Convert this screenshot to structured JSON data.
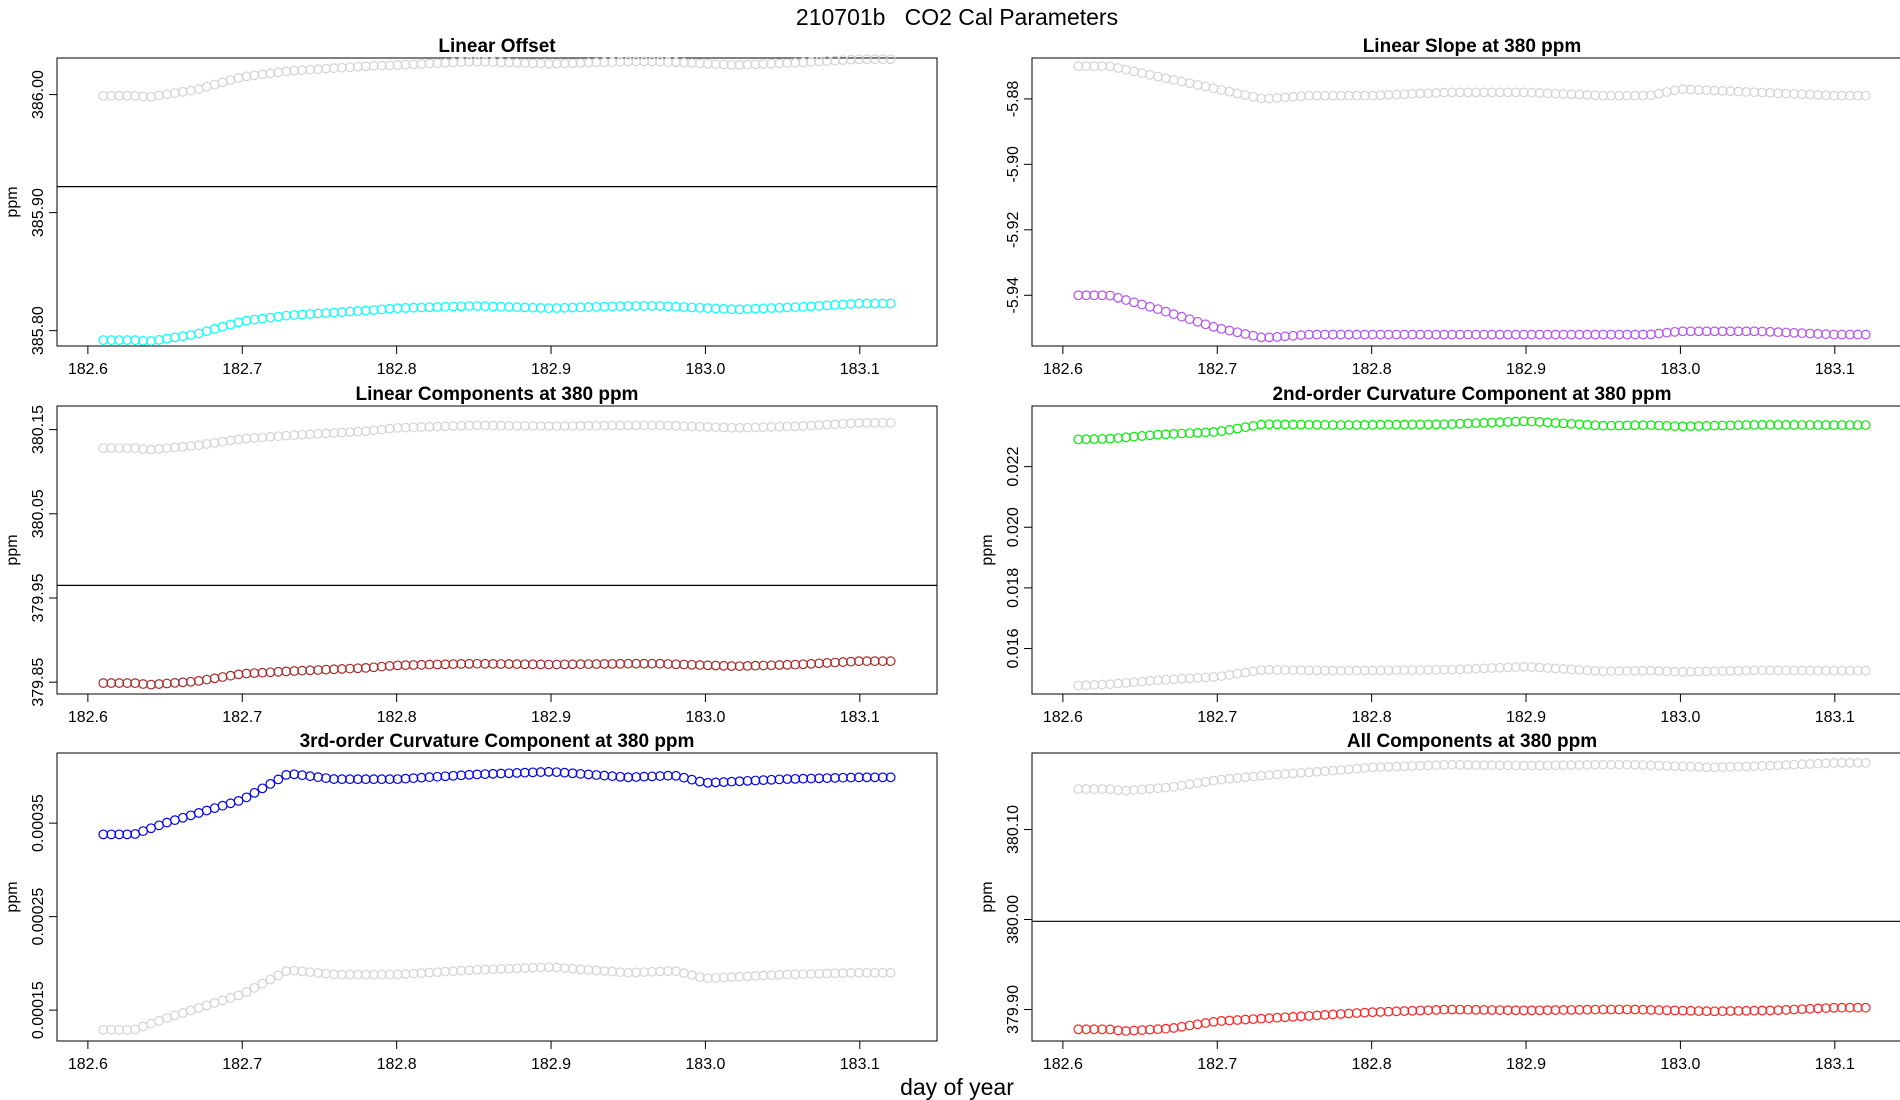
{
  "figure": {
    "title": "210701b   CO2 Cal Parameters",
    "xlabel": "day of year"
  },
  "colors": {
    "reference": "#d3d3d3",
    "axis": "#000000"
  },
  "chart_data": [
    {
      "type": "scatter",
      "title": "Linear Offset",
      "ylabel": "ppm",
      "xticks": [
        "182.6",
        "182.7",
        "182.8",
        "182.9",
        "183.0",
        "183.1"
      ],
      "yticks": [
        "385.80",
        "385.90",
        "386.00"
      ],
      "xlim": [
        182.58,
        183.15
      ],
      "ylim": [
        385.787,
        386.031
      ],
      "hline": 385.922,
      "series": [
        {
          "color": "#00ffff",
          "keypoints": [
            [
              182.61,
              385.792
            ],
            [
              182.63,
              385.792
            ],
            [
              182.64,
              385.791
            ],
            [
              182.67,
              385.797
            ],
            [
              182.7,
              385.808
            ],
            [
              182.73,
              385.813
            ],
            [
              182.78,
              385.817
            ],
            [
              182.8,
              385.819
            ],
            [
              182.85,
              385.821
            ],
            [
              182.9,
              385.819
            ],
            [
              182.95,
              385.821
            ],
            [
              182.97,
              385.821
            ],
            [
              183.02,
              385.818
            ],
            [
              183.06,
              385.82
            ],
            [
              183.1,
              385.823
            ],
            [
              183.12,
              385.823
            ]
          ]
        },
        {
          "color": "#d3d3d3",
          "keypoints": [
            [
              182.61,
              385.999
            ],
            [
              182.63,
              385.999
            ],
            [
              182.64,
              385.998
            ],
            [
              182.67,
              386.004
            ],
            [
              182.7,
              386.015
            ],
            [
              182.73,
              386.02
            ],
            [
              182.78,
              386.024
            ],
            [
              182.8,
              386.025
            ],
            [
              182.85,
              386.028
            ],
            [
              182.9,
              386.026
            ],
            [
              182.95,
              386.028
            ],
            [
              182.97,
              386.028
            ],
            [
              183.02,
              386.025
            ],
            [
              183.06,
              386.027
            ],
            [
              183.1,
              386.03
            ],
            [
              183.12,
              386.03
            ]
          ]
        }
      ]
    },
    {
      "type": "scatter",
      "title": "Linear Slope at 380 ppm",
      "ylabel": "",
      "xticks": [
        "182.6",
        "182.7",
        "182.8",
        "182.9",
        "183.0",
        "183.1"
      ],
      "yticks": [
        "-5.94",
        "-5.92",
        "-5.90",
        "-5.88"
      ],
      "xlim": [
        182.58,
        183.15
      ],
      "ylim": [
        -5.9555,
        -5.8675
      ],
      "hline": null,
      "series": [
        {
          "color": "#b452f0",
          "keypoints": [
            [
              182.61,
              -5.94
            ],
            [
              182.63,
              -5.94
            ],
            [
              182.66,
              -5.944
            ],
            [
              182.7,
              -5.95
            ],
            [
              182.73,
              -5.953
            ],
            [
              182.76,
              -5.952
            ],
            [
              182.8,
              -5.952
            ],
            [
              182.85,
              -5.952
            ],
            [
              182.9,
              -5.952
            ],
            [
              182.95,
              -5.952
            ],
            [
              182.98,
              -5.952
            ],
            [
              183.0,
              -5.951
            ],
            [
              183.05,
              -5.951
            ],
            [
              183.1,
              -5.952
            ],
            [
              183.12,
              -5.952
            ]
          ]
        },
        {
          "color": "#d3d3d3",
          "keypoints": [
            [
              182.61,
              -5.87
            ],
            [
              182.63,
              -5.87
            ],
            [
              182.66,
              -5.873
            ],
            [
              182.7,
              -5.877
            ],
            [
              182.73,
              -5.88
            ],
            [
              182.76,
              -5.879
            ],
            [
              182.8,
              -5.879
            ],
            [
              182.85,
              -5.878
            ],
            [
              182.9,
              -5.878
            ],
            [
              182.95,
              -5.879
            ],
            [
              182.98,
              -5.879
            ],
            [
              183.0,
              -5.877
            ],
            [
              183.05,
              -5.878
            ],
            [
              183.1,
              -5.879
            ],
            [
              183.12,
              -5.879
            ]
          ]
        }
      ]
    },
    {
      "type": "scatter",
      "title": "Linear Components at 380 ppm",
      "ylabel": "ppm",
      "xticks": [
        "182.6",
        "182.7",
        "182.8",
        "182.9",
        "183.0",
        "183.1"
      ],
      "yticks": [
        "379.85",
        "379.95",
        "380.05",
        "380.15"
      ],
      "xlim": [
        182.58,
        183.15
      ],
      "ylim": [
        379.836,
        380.178
      ],
      "hline": 379.965,
      "series": [
        {
          "color": "#a52a2a",
          "keypoints": [
            [
              182.61,
              379.849
            ],
            [
              182.63,
              379.849
            ],
            [
              182.64,
              379.847
            ],
            [
              182.67,
              379.851
            ],
            [
              182.7,
              379.86
            ],
            [
              182.73,
              379.863
            ],
            [
              182.78,
              379.867
            ],
            [
              182.8,
              379.87
            ],
            [
              182.85,
              379.872
            ],
            [
              182.9,
              379.871
            ],
            [
              182.95,
              379.872
            ],
            [
              182.97,
              379.872
            ],
            [
              183.02,
              379.869
            ],
            [
              183.06,
              379.871
            ],
            [
              183.1,
              379.875
            ],
            [
              183.12,
              379.875
            ]
          ]
        },
        {
          "color": "#d3d3d3",
          "keypoints": [
            [
              182.61,
              380.128
            ],
            [
              182.63,
              380.128
            ],
            [
              182.64,
              380.126
            ],
            [
              182.67,
              380.131
            ],
            [
              182.7,
              380.139
            ],
            [
              182.73,
              380.143
            ],
            [
              182.78,
              380.148
            ],
            [
              182.8,
              380.152
            ],
            [
              182.85,
              380.155
            ],
            [
              182.9,
              380.154
            ],
            [
              182.95,
              380.155
            ],
            [
              182.97,
              380.155
            ],
            [
              183.02,
              380.152
            ],
            [
              183.06,
              380.154
            ],
            [
              183.1,
              380.158
            ],
            [
              183.12,
              380.158
            ]
          ]
        }
      ]
    },
    {
      "type": "scatter",
      "title": "2nd-order Curvature Component at 380 ppm",
      "ylabel": "ppm",
      "xticks": [
        "182.6",
        "182.7",
        "182.8",
        "182.9",
        "183.0",
        "183.1"
      ],
      "yticks": [
        "0.016",
        "0.018",
        "0.020",
        "0.022"
      ],
      "xlim": [
        182.58,
        183.15
      ],
      "ylim": [
        0.0145,
        0.024
      ],
      "hline": null,
      "series": [
        {
          "color": "#00ee00",
          "keypoints": [
            [
              182.61,
              0.0229
            ],
            [
              182.63,
              0.02292
            ],
            [
              182.66,
              0.02305
            ],
            [
              182.7,
              0.02315
            ],
            [
              182.73,
              0.0234
            ],
            [
              182.78,
              0.02337
            ],
            [
              182.85,
              0.0234
            ],
            [
              182.9,
              0.0235
            ],
            [
              182.95,
              0.02335
            ],
            [
              182.98,
              0.02337
            ],
            [
              183.0,
              0.02333
            ],
            [
              183.05,
              0.02338
            ],
            [
              183.1,
              0.02337
            ],
            [
              183.12,
              0.02337
            ]
          ]
        },
        {
          "color": "#d3d3d3",
          "keypoints": [
            [
              182.61,
              0.01478
            ],
            [
              182.63,
              0.01482
            ],
            [
              182.66,
              0.01495
            ],
            [
              182.7,
              0.01507
            ],
            [
              182.73,
              0.0153
            ],
            [
              182.78,
              0.01527
            ],
            [
              182.85,
              0.0153
            ],
            [
              182.9,
              0.0154
            ],
            [
              182.95,
              0.01525
            ],
            [
              182.98,
              0.01527
            ],
            [
              183.0,
              0.01523
            ],
            [
              183.05,
              0.01528
            ],
            [
              183.1,
              0.01527
            ],
            [
              183.12,
              0.01527
            ]
          ]
        }
      ]
    },
    {
      "type": "scatter",
      "title": "3rd-order Curvature Component at 380 ppm",
      "ylabel": "ppm",
      "xticks": [
        "182.6",
        "182.7",
        "182.8",
        "182.9",
        "183.0",
        "183.1"
      ],
      "yticks": [
        "0.00015",
        "0.00025",
        "0.00035"
      ],
      "xlim": [
        182.58,
        183.15
      ],
      "ylim": [
        0.000117,
        0.000425
      ],
      "hline": null,
      "series": [
        {
          "color": "#0000ee",
          "keypoints": [
            [
              182.61,
              0.000338
            ],
            [
              182.63,
              0.000338
            ],
            [
              182.65,
              0.00035
            ],
            [
              182.7,
              0.000375
            ],
            [
              182.73,
              0.000403
            ],
            [
              182.76,
              0.000397
            ],
            [
              182.8,
              0.000397
            ],
            [
              182.85,
              0.000402
            ],
            [
              182.9,
              0.000405
            ],
            [
              182.95,
              0.000399
            ],
            [
              182.98,
              0.000401
            ],
            [
              183.0,
              0.000393
            ],
            [
              183.05,
              0.000397
            ],
            [
              183.1,
              0.000399
            ],
            [
              183.12,
              0.000399
            ]
          ]
        },
        {
          "color": "#d3d3d3",
          "keypoints": [
            [
              182.61,
              0.000129
            ],
            [
              182.63,
              0.000129
            ],
            [
              182.65,
              0.000141
            ],
            [
              182.7,
              0.000167
            ],
            [
              182.73,
              0.000193
            ],
            [
              182.76,
              0.000188
            ],
            [
              182.8,
              0.000188
            ],
            [
              182.85,
              0.000193
            ],
            [
              182.9,
              0.000196
            ],
            [
              182.95,
              0.00019
            ],
            [
              182.98,
              0.000192
            ],
            [
              183.0,
              0.000184
            ],
            [
              183.05,
              0.000188
            ],
            [
              183.1,
              0.00019
            ],
            [
              183.12,
              0.00019
            ]
          ]
        }
      ]
    },
    {
      "type": "scatter",
      "title": "All Components at 380 ppm",
      "ylabel": "ppm",
      "xticks": [
        "182.6",
        "182.7",
        "182.8",
        "182.9",
        "183.0",
        "183.1"
      ],
      "yticks": [
        "379.90",
        "380.00",
        "380.10"
      ],
      "xlim": [
        182.58,
        183.15
      ],
      "ylim": [
        379.865,
        380.185
      ],
      "hline": 379.998,
      "series": [
        {
          "color": "#ff2020",
          "keypoints": [
            [
              182.61,
              379.878
            ],
            [
              182.63,
              379.878
            ],
            [
              182.64,
              379.876
            ],
            [
              182.67,
              379.879
            ],
            [
              182.7,
              379.887
            ],
            [
              182.73,
              379.89
            ],
            [
              182.78,
              379.895
            ],
            [
              182.8,
              379.897
            ],
            [
              182.85,
              379.9
            ],
            [
              182.9,
              379.899
            ],
            [
              182.95,
              379.9
            ],
            [
              182.97,
              379.9
            ],
            [
              183.02,
              379.898
            ],
            [
              183.06,
              379.899
            ],
            [
              183.1,
              379.902
            ],
            [
              183.12,
              379.902
            ]
          ]
        },
        {
          "color": "#d3d3d3",
          "keypoints": [
            [
              182.61,
              380.145
            ],
            [
              182.63,
              380.145
            ],
            [
              182.64,
              380.143
            ],
            [
              182.67,
              380.147
            ],
            [
              182.7,
              380.155
            ],
            [
              182.73,
              380.16
            ],
            [
              182.78,
              380.166
            ],
            [
              182.8,
              380.169
            ],
            [
              182.85,
              380.172
            ],
            [
              182.9,
              380.171
            ],
            [
              182.95,
              380.172
            ],
            [
              182.97,
              380.172
            ],
            [
              183.02,
              380.169
            ],
            [
              183.06,
              380.171
            ],
            [
              183.1,
              380.174
            ],
            [
              183.12,
              380.174
            ]
          ]
        }
      ]
    }
  ]
}
